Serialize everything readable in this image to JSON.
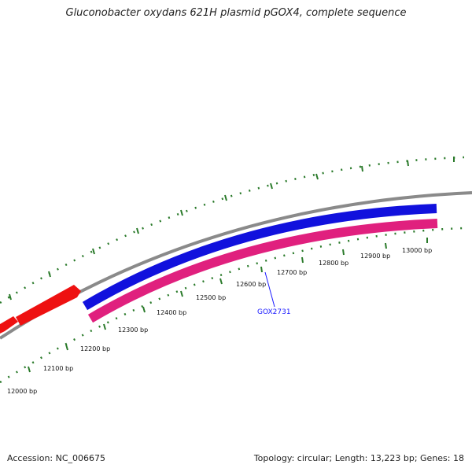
{
  "title": "Gluconobacter oxydans 621H plasmid pGOX4, complete sequence",
  "footer": {
    "accession": "Accession: NC_006675",
    "summary": "Topology: circular; Length: 13,223 bp; Genes: 18"
  },
  "map": {
    "colors": {
      "backbone": "#8a8a8a",
      "forward_gene": "#ee1111",
      "blue_feature": "#1111dd",
      "pink_feature": "#e0207e",
      "tick": "#2a7a2a",
      "gene_label": "#1a1aff"
    },
    "bp_labels": [
      "12000 bp",
      "12100 bp",
      "12200 bp",
      "12300 bp",
      "12400 bp",
      "12500 bp",
      "12600 bp",
      "12700 bp",
      "12800 bp",
      "12900 bp",
      "13000 bp"
    ],
    "gene_label": "GOX2731"
  }
}
